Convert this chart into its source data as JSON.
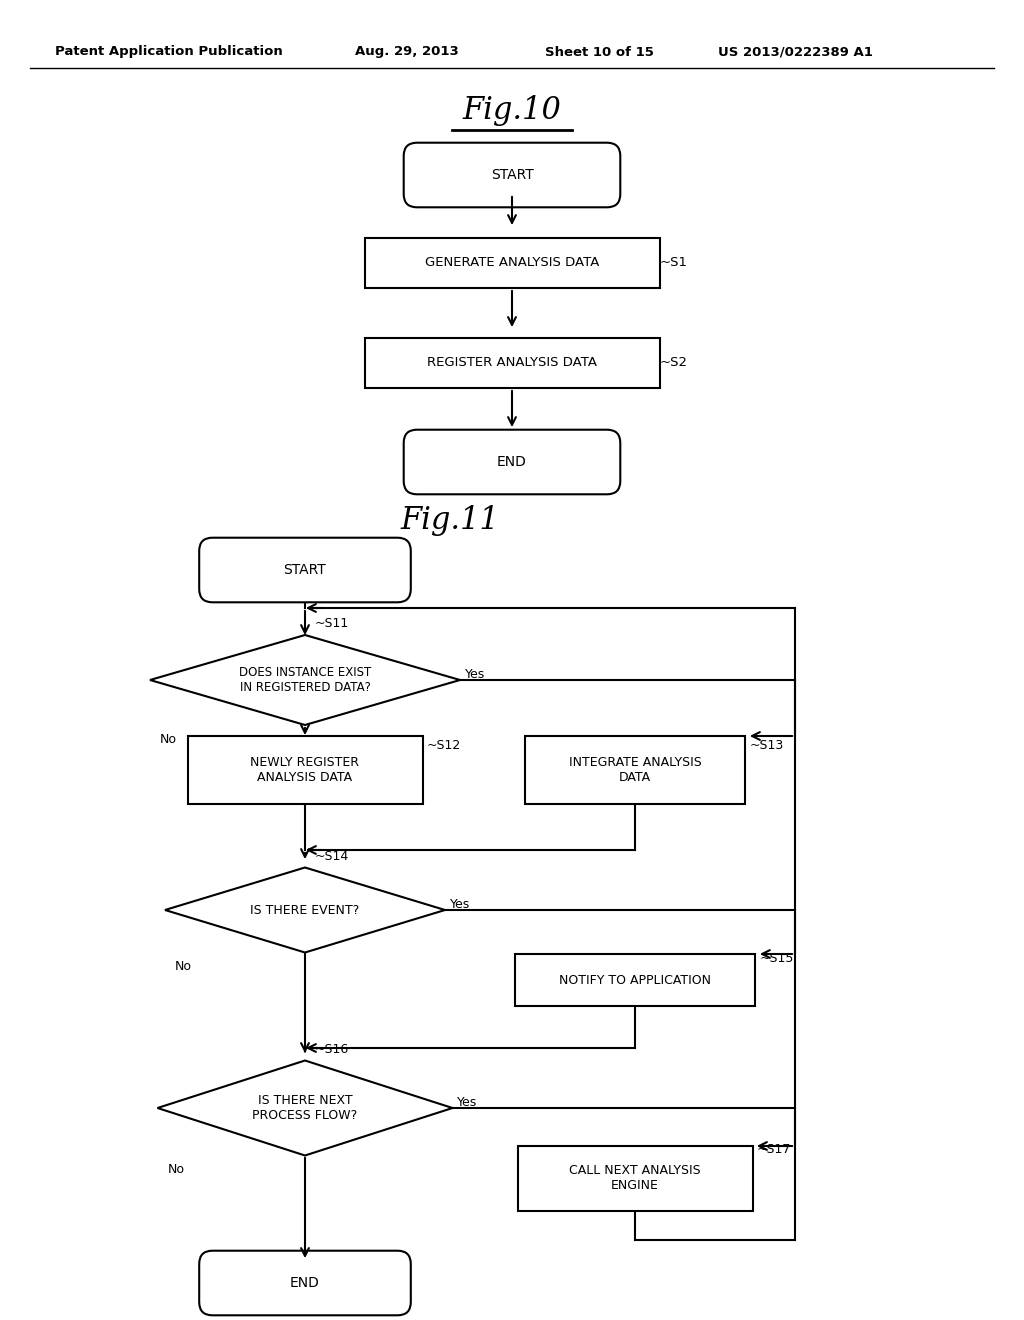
{
  "bg_color": "#ffffff",
  "header_text": "Patent Application Publication",
  "header_date": "Aug. 29, 2013",
  "header_sheet": "Sheet 10 of 15",
  "header_patent": "US 2013/0222389 A1",
  "fig10_title": "Fig.10",
  "fig11_title": "Fig.11",
  "line_color": "#000000",
  "text_color": "#000000",
  "font_family": "DejaVu Sans"
}
